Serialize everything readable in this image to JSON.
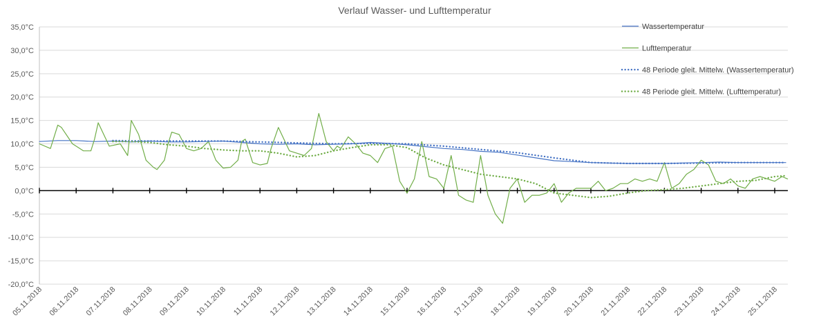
{
  "chart_data": {
    "type": "line",
    "title": "Verlauf Wasser- und Lufttemperatur",
    "xlabel": "",
    "ylabel": "",
    "ylim": [
      -20,
      35
    ],
    "yticks": [
      "35,0°C",
      "30,0°C",
      "25,0°C",
      "20,0°C",
      "15,0°C",
      "10,0°C",
      "5,0°C",
      "0,0°C",
      "-5,0°C",
      "-10,0°C",
      "-15,0°C",
      "-20,0°C"
    ],
    "ytick_values": [
      35,
      30,
      25,
      20,
      15,
      10,
      5,
      0,
      -5,
      -10,
      -15,
      -20
    ],
    "xlim": [
      0,
      20.35
    ],
    "categories": [
      "05.11.2018",
      "06.11.2018",
      "07.11.2018",
      "08.11.2018",
      "09.11.2018",
      "10.11.2018",
      "11.11.2018",
      "12.11.2018",
      "13.11.2018",
      "14.11.2018",
      "15.11.2018",
      "16.11.2018",
      "17.11.2018",
      "18.11.2018",
      "19.11.2018",
      "20.11.2018",
      "21.11.2018",
      "22.11.2018",
      "23.11.2018",
      "24.11.2018",
      "25.11.2018"
    ],
    "grid": true,
    "legend_position": "right",
    "series": [
      {
        "name": "Wassertemperatur",
        "color": "#4472C4",
        "style": "solid",
        "x": [
          0,
          0.5,
          1,
          1.5,
          2,
          2.5,
          3,
          3.5,
          4,
          4.5,
          5,
          5.5,
          6,
          6.5,
          7,
          7.5,
          8,
          8.5,
          9,
          9.5,
          10,
          10.5,
          11,
          11.5,
          12,
          12.5,
          13,
          13.5,
          14,
          14.5,
          15,
          15.5,
          16,
          16.5,
          17,
          17.5,
          18,
          18.5,
          19,
          19.5,
          20,
          20.3
        ],
        "y": [
          10.5,
          10.7,
          10.7,
          10.5,
          10.6,
          10.4,
          10.6,
          10.4,
          10.4,
          10.5,
          10.6,
          10.3,
          10.0,
          9.9,
          10.0,
          9.8,
          9.9,
          10.0,
          10.3,
          10.1,
          9.8,
          9.4,
          9.0,
          8.8,
          8.4,
          8.2,
          7.6,
          7.0,
          6.4,
          6.2,
          6.0,
          5.9,
          5.8,
          5.8,
          5.8,
          5.9,
          6.0,
          6.1,
          6.0,
          6.0,
          6.0,
          6.0
        ]
      },
      {
        "name": "Lufttemperatur",
        "color": "#70AD47",
        "style": "solid",
        "x": [
          0,
          0.3,
          0.5,
          0.6,
          0.9,
          1.2,
          1.4,
          1.5,
          1.6,
          1.9,
          2.2,
          2.4,
          2.5,
          2.7,
          2.9,
          3.1,
          3.2,
          3.4,
          3.5,
          3.6,
          3.8,
          4.0,
          4.2,
          4.4,
          4.6,
          4.8,
          5.0,
          5.2,
          5.4,
          5.5,
          5.6,
          5.8,
          6.0,
          6.2,
          6.3,
          6.5,
          6.8,
          7.0,
          7.2,
          7.4,
          7.6,
          7.8,
          8.0,
          8.1,
          8.2,
          8.4,
          8.6,
          8.8,
          9.0,
          9.2,
          9.4,
          9.6,
          9.8,
          10.0,
          10.2,
          10.4,
          10.6,
          10.8,
          11.0,
          11.2,
          11.4,
          11.6,
          11.8,
          12.0,
          12.2,
          12.4,
          12.6,
          12.8,
          13.0,
          13.2,
          13.4,
          13.6,
          13.8,
          14.0,
          14.2,
          14.4,
          14.6,
          14.8,
          15.0,
          15.2,
          15.4,
          15.6,
          15.8,
          16.0,
          16.2,
          16.4,
          16.6,
          16.8,
          17.0,
          17.2,
          17.4,
          17.6,
          17.8,
          18.0,
          18.2,
          18.4,
          18.6,
          18.8,
          19.0,
          19.2,
          19.4,
          19.6,
          19.8,
          20.0,
          20.2,
          20.35
        ],
        "y": [
          10.0,
          9.0,
          14.0,
          13.5,
          10.0,
          8.5,
          8.5,
          11.0,
          14.5,
          9.5,
          10.0,
          7.5,
          15.0,
          12.0,
          6.5,
          5.0,
          4.5,
          6.5,
          10.0,
          12.5,
          12.0,
          9.0,
          8.5,
          9.0,
          10.5,
          6.5,
          4.8,
          5.0,
          6.5,
          10.5,
          11.0,
          6.0,
          5.5,
          5.8,
          9.0,
          13.5,
          8.5,
          8.0,
          7.5,
          9.0,
          16.5,
          10.5,
          8.5,
          9.5,
          9.0,
          11.5,
          10.0,
          8.0,
          7.5,
          6.0,
          9.0,
          9.5,
          2.0,
          -0.5,
          2.5,
          10.5,
          3.0,
          2.5,
          0.5,
          7.5,
          -1.0,
          -2.0,
          -2.5,
          7.5,
          -1.0,
          -5.0,
          -7.0,
          0.5,
          2.5,
          -2.5,
          -1.0,
          -1.0,
          -0.5,
          1.5,
          -2.5,
          -0.5,
          0.5,
          0.5,
          0.5,
          2.0,
          0.0,
          0.5,
          1.5,
          1.5,
          2.5,
          2.0,
          2.5,
          2.0,
          6.0,
          0.5,
          1.5,
          3.5,
          4.5,
          6.5,
          5.5,
          2.0,
          1.5,
          2.5,
          1.0,
          0.5,
          2.5,
          3.0,
          2.5,
          2.0,
          3.0,
          2.5
        ]
      },
      {
        "name": "48 Periode gleit. Mittelw. (Wassertemperatur)",
        "color": "#4472C4",
        "style": "dotted",
        "x": [
          2,
          3,
          4,
          5,
          6,
          7,
          8,
          9,
          10,
          11,
          12,
          13,
          14,
          15,
          16,
          17,
          18,
          19,
          20,
          20.3
        ],
        "y": [
          10.7,
          10.6,
          10.6,
          10.6,
          10.4,
          10.2,
          10.0,
          10.1,
          10.0,
          9.5,
          8.8,
          8.1,
          7.0,
          6.0,
          5.8,
          5.8,
          5.9,
          6.0,
          6.0,
          6.0
        ]
      },
      {
        "name": "48 Periode gleit. Mittelw. (Lufttemperatur)",
        "color": "#70AD47",
        "style": "dotted",
        "x": [
          2,
          2.5,
          3,
          3.5,
          4,
          4.5,
          5,
          5.5,
          6,
          6.5,
          7,
          7.5,
          8,
          8.5,
          9,
          9.5,
          10,
          10.5,
          11,
          11.5,
          12,
          12.5,
          13,
          13.5,
          14,
          14.5,
          15,
          15.5,
          16,
          16.5,
          17,
          17.5,
          18,
          18.5,
          19,
          19.5,
          20,
          20.3
        ],
        "y": [
          10.5,
          10.5,
          10.3,
          9.8,
          9.5,
          9.0,
          8.7,
          8.5,
          8.5,
          8.0,
          7.2,
          7.5,
          8.5,
          9.2,
          9.8,
          9.8,
          9.2,
          7.0,
          5.5,
          4.5,
          3.5,
          3.0,
          2.5,
          1.5,
          -0.5,
          -1.0,
          -1.5,
          -1.2,
          -0.5,
          0.0,
          0.2,
          0.5,
          1.0,
          1.5,
          2.0,
          2.2,
          3.0,
          3.2
        ]
      }
    ]
  }
}
